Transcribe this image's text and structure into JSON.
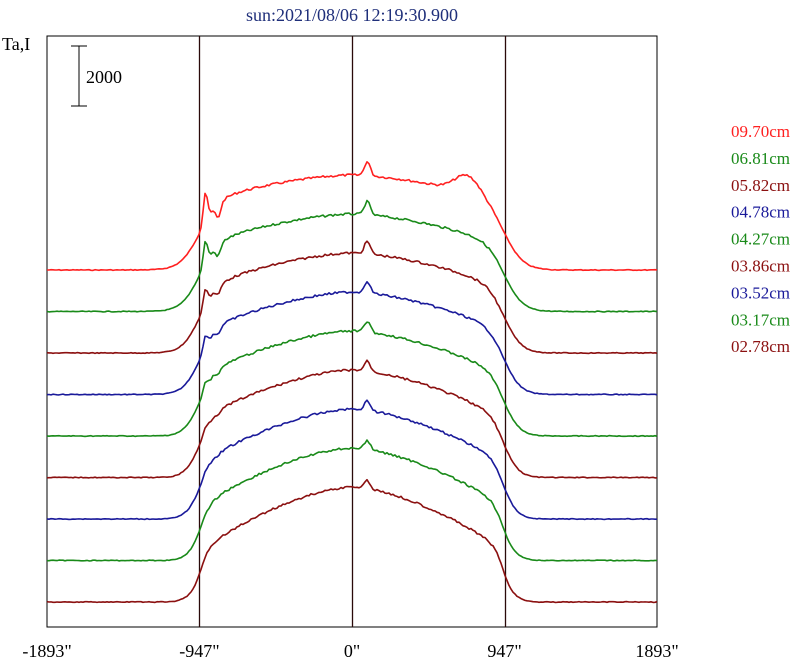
{
  "chart_data": {
    "type": "line",
    "title": "sun:2021/08/06 12:19:30.900",
    "ylabel": "Ta,I",
    "xlabel": "",
    "scale_bar_label": "2000",
    "x_ticks": [
      "-1893\"",
      "-947\"",
      "0\"",
      "947\"",
      "1893\""
    ],
    "xlim": [
      -1893,
      1893
    ],
    "solid_edge_markers": [
      -947,
      0,
      947
    ],
    "grid": false,
    "legend_position": "right",
    "stacked_offset": true,
    "series": [
      {
        "name": "09.70cm",
        "color": "#ff2020",
        "rank": 0
      },
      {
        "name": "06.81cm",
        "color": "#198a19",
        "rank": 1
      },
      {
        "name": "05.82cm",
        "color": "#8b1010",
        "rank": 2
      },
      {
        "name": "04.78cm",
        "color": "#1a1a9a",
        "rank": 3
      },
      {
        "name": "04.27cm",
        "color": "#198a19",
        "rank": 4
      },
      {
        "name": "03.86cm",
        "color": "#8b1010",
        "rank": 5
      },
      {
        "name": "03.52cm",
        "color": "#1a1a9a",
        "rank": 6
      },
      {
        "name": "03.17cm",
        "color": "#198a19",
        "rank": 7
      },
      {
        "name": "02.78cm",
        "color": "#8b1010",
        "rank": 8
      }
    ]
  }
}
